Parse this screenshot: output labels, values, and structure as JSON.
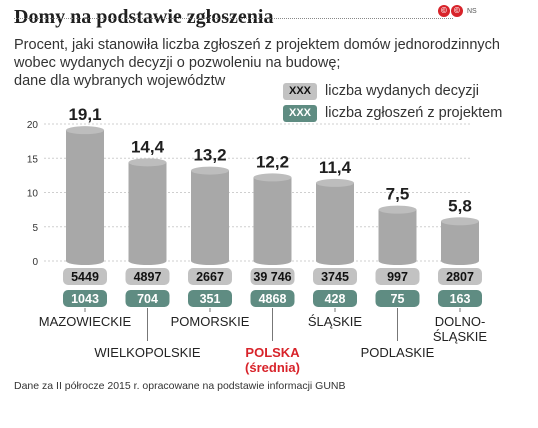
{
  "title": "Domy na podstawie zgłoszenia",
  "logo": {
    "mark": "©",
    "suffix": "NS"
  },
  "subtitle": [
    "Procent, jaki stanowiła liczba zgłoszeń z projektem domów jednorodzinnych",
    "wobec wydanych decyzji o pozwoleniu na budowę;",
    "dane dla wybranych województw"
  ],
  "legend": [
    {
      "swatch": "XXX",
      "label": "liczba wydanych decyzji",
      "color": "#c2c2c2"
    },
    {
      "swatch": "XXX",
      "label": "liczba zgłoszeń z projektem",
      "color": "#5f8c82"
    }
  ],
  "footnote": "Dane za II półrocze 2015 r. opracowane na podstawie informacji GUNB",
  "colors": {
    "bar": "#a8a8a8",
    "highlight_label": "#d8232a"
  },
  "chart_data": {
    "type": "bar",
    "ylim": [
      0,
      20
    ],
    "yticks": [
      "0",
      "5",
      "10",
      "15",
      "20"
    ],
    "grid": true,
    "categories": [
      [
        "MAZOWIECKIE"
      ],
      [
        "WIELKOPOLSKIE"
      ],
      [
        "POMORSKIE"
      ],
      [
        "POLSKA",
        "(średnia)"
      ],
      [
        "ŚLĄSKIE"
      ],
      [
        "PODLASKIE"
      ],
      [
        "DOLNO-",
        "ŚLĄSKIE"
      ]
    ],
    "values": [
      19.1,
      14.4,
      13.2,
      12.2,
      11.4,
      7.5,
      5.8
    ],
    "value_labels": [
      "19,1",
      "14,4",
      "13,2",
      "12,2",
      "11,4",
      "7,5",
      "5,8"
    ],
    "highlight_index": 3,
    "series": [
      {
        "name": "liczba wydanych decyzji",
        "values": [
          "5449",
          "4897",
          "2667",
          "39 746",
          "3745",
          "997",
          "2807"
        ]
      },
      {
        "name": "liczba zgłoszeń z projektem",
        "values": [
          "1043",
          "704",
          "351",
          "4868",
          "428",
          "75",
          "163"
        ]
      }
    ]
  }
}
